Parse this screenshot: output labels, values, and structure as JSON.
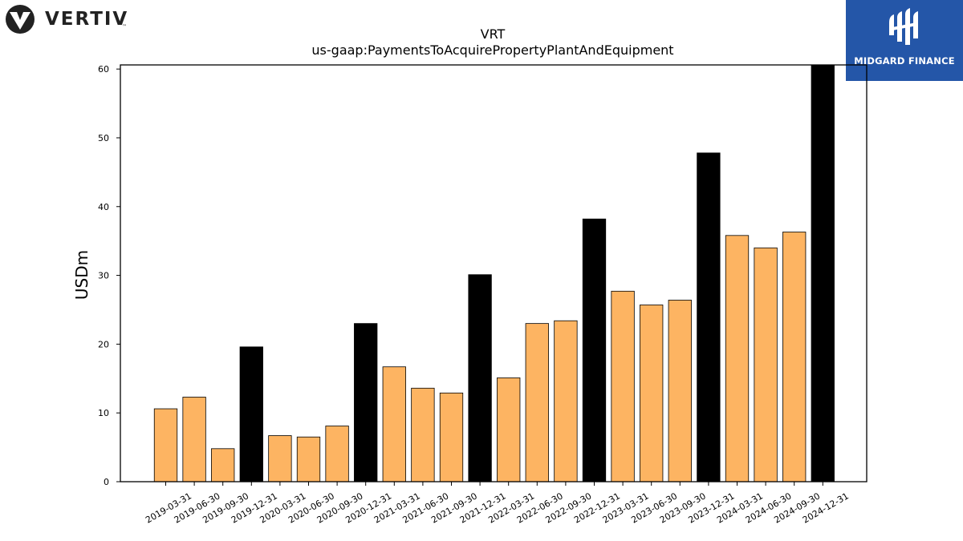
{
  "header": {
    "left_logo_text": "VERTIV",
    "left_logo_tm": "™",
    "right_logo_text": "MIDGARD FINANCE"
  },
  "colors": {
    "quarter_bar": "#fdb462",
    "year_end_bar": "#000000",
    "midgard_blue": "#2456a8"
  },
  "chart_data": {
    "type": "bar",
    "title": "VRT",
    "subtitle": "us-gaap:PaymentsToAcquirePropertyPlantAndEquipment",
    "xlabel": "",
    "ylabel": "USDm",
    "ylim": [
      0,
      60.6
    ],
    "yticks": [
      0,
      10,
      20,
      30,
      40,
      50,
      60
    ],
    "grid": false,
    "legend": "none",
    "categories": [
      "2019-03-31",
      "2019-06-30",
      "2019-09-30",
      "2019-12-31",
      "2020-03-31",
      "2020-06-30",
      "2020-09-30",
      "2020-12-31",
      "2021-03-31",
      "2021-06-30",
      "2021-09-30",
      "2021-12-31",
      "2022-03-31",
      "2022-06-30",
      "2022-09-30",
      "2022-12-31",
      "2023-03-31",
      "2023-06-30",
      "2023-09-30",
      "2023-12-31",
      "2024-03-31",
      "2024-06-30",
      "2024-09-30",
      "2024-12-31"
    ],
    "values": [
      10.6,
      12.3,
      4.8,
      19.6,
      6.7,
      6.5,
      8.1,
      23.0,
      16.7,
      13.6,
      12.9,
      30.1,
      15.1,
      23.0,
      23.4,
      38.2,
      27.7,
      25.7,
      26.4,
      47.8,
      35.8,
      34.0,
      36.3,
      60.6
    ],
    "year_end": [
      false,
      false,
      false,
      true,
      false,
      false,
      false,
      true,
      false,
      false,
      false,
      true,
      false,
      false,
      false,
      true,
      false,
      false,
      false,
      true,
      false,
      false,
      false,
      true
    ]
  }
}
